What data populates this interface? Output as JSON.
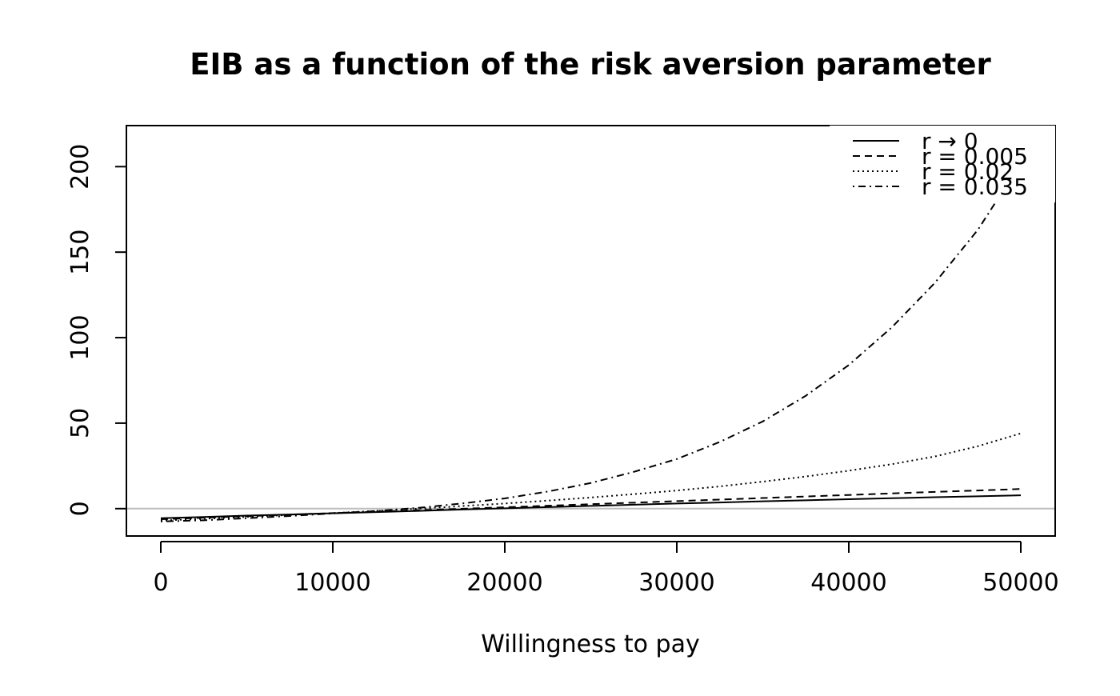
{
  "chart_data": {
    "type": "line",
    "title": "EIB as a function of the risk aversion parameter",
    "xlabel": "Willingness to pay",
    "ylabel": "",
    "xlim": [
      -2000,
      52000
    ],
    "ylim": [
      -16,
      224
    ],
    "x_ticks": [
      0,
      10000,
      20000,
      30000,
      40000,
      50000
    ],
    "x_tick_labels": [
      "0",
      "10000",
      "20000",
      "30000",
      "40000",
      "50000"
    ],
    "y_ticks": [
      0,
      50,
      100,
      150,
      200
    ],
    "y_tick_labels": [
      "0",
      "50",
      "100",
      "150",
      "200"
    ],
    "reference_line": {
      "y": 0,
      "color": "#bebebe"
    },
    "x": [
      0,
      2500,
      5000,
      7500,
      10000,
      12500,
      15000,
      17500,
      20000,
      22500,
      25000,
      27500,
      30000,
      32500,
      35000,
      37500,
      40000,
      42500,
      45000,
      47500,
      50000
    ],
    "series": [
      {
        "name": "r → 0",
        "legend": "r → 0",
        "dash": "solid",
        "values": [
          -5.6,
          -4.9,
          -4.1,
          -3.4,
          -2.7,
          -2.0,
          -1.3,
          -0.5,
          0.2,
          0.9,
          1.6,
          2.3,
          3.0,
          3.6,
          4.3,
          4.9,
          5.5,
          6.1,
          6.7,
          7.2,
          7.8
        ]
      },
      {
        "name": "r = 0.005",
        "legend": "r = 0.005",
        "dash": "dashed",
        "values": [
          -6.2,
          -5.3,
          -4.4,
          -3.5,
          -2.6,
          -1.8,
          -0.9,
          -0.1,
          0.8,
          1.7,
          2.6,
          3.5,
          4.4,
          5.3,
          6.2,
          7.1,
          8.0,
          8.9,
          9.8,
          10.6,
          11.5
        ]
      },
      {
        "name": "r = 0.02",
        "legend": "r = 0.02",
        "dash": "dotted",
        "values": [
          -7.0,
          -5.9,
          -4.8,
          -3.7,
          -2.6,
          -1.3,
          0.0,
          1.5,
          3.0,
          4.7,
          6.5,
          8.5,
          10.6,
          13.0,
          15.8,
          18.8,
          22.2,
          26.0,
          30.5,
          36.5,
          44.0
        ]
      },
      {
        "name": "r = 0.035",
        "legend": "r = 0.035",
        "dash": "dotdash",
        "values": [
          -7.5,
          -6.8,
          -5.6,
          -4.3,
          -2.8,
          -1.4,
          0.5,
          3.0,
          6.0,
          10.0,
          15.0,
          21.5,
          29.0,
          39.0,
          51.0,
          66.0,
          84.0,
          106.0,
          132.0,
          163.0,
          202.0
        ]
      }
    ],
    "legend": {
      "position": "top-right",
      "entries": [
        "r → 0",
        "r = 0.005",
        "r = 0.02",
        "r = 0.035"
      ]
    }
  }
}
